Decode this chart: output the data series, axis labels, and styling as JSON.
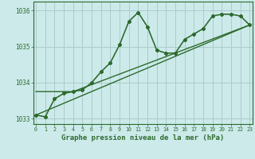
{
  "title": "Graphe pression niveau de la mer (hPa)",
  "background_color": "#cceaea",
  "grid_color": "#aacccc",
  "line_color": "#2d6a2d",
  "x_ticks": [
    0,
    1,
    2,
    3,
    4,
    5,
    6,
    7,
    8,
    9,
    10,
    11,
    12,
    13,
    14,
    15,
    16,
    17,
    18,
    19,
    20,
    21,
    22,
    23
  ],
  "ylim": [
    1032.85,
    1036.25
  ],
  "yticks": [
    1033,
    1034,
    1035,
    1036
  ],
  "series_dotted": {
    "x": [
      0,
      1,
      2,
      3,
      4,
      5,
      6,
      7,
      8,
      9,
      10,
      11,
      12,
      13,
      14,
      15,
      16,
      17,
      18,
      19,
      20,
      21,
      22,
      23
    ],
    "y": [
      1033.1,
      1033.05,
      1033.55,
      1033.7,
      1033.75,
      1033.8,
      1034.0,
      1034.3,
      1034.55,
      1035.05,
      1035.7,
      1035.95,
      1035.55,
      1034.9,
      1034.82,
      1034.82,
      1035.2,
      1035.35,
      1035.5,
      1035.85,
      1035.9,
      1035.9,
      1035.85,
      1035.6
    ]
  },
  "series_solid": {
    "x": [
      0,
      1,
      2,
      3,
      4,
      5,
      6,
      7,
      8,
      9,
      10,
      11,
      12,
      13,
      14,
      15,
      16,
      17,
      18,
      19,
      20,
      21,
      22,
      23
    ],
    "y": [
      1033.1,
      1033.05,
      1033.55,
      1033.7,
      1033.75,
      1033.8,
      1034.0,
      1034.3,
      1034.55,
      1035.05,
      1035.7,
      1035.95,
      1035.55,
      1034.9,
      1034.82,
      1034.82,
      1035.2,
      1035.35,
      1035.5,
      1035.85,
      1035.9,
      1035.9,
      1035.85,
      1035.6
    ]
  },
  "series_trend1": {
    "x": [
      0,
      23
    ],
    "y": [
      1033.1,
      1035.6
    ]
  },
  "series_trend2": {
    "x": [
      0,
      4,
      23
    ],
    "y": [
      1033.75,
      1033.75,
      1035.6
    ]
  }
}
